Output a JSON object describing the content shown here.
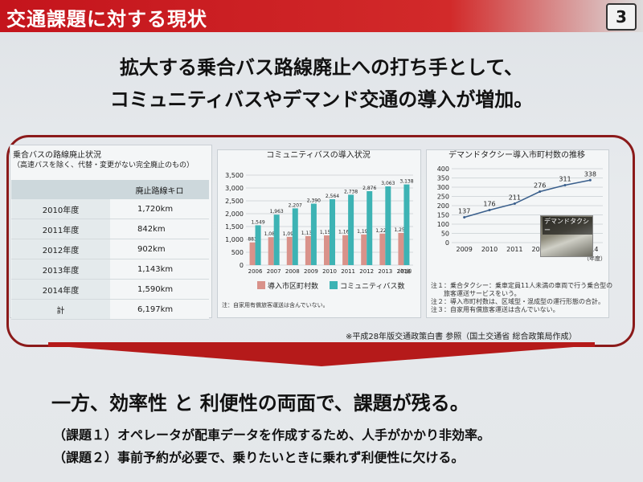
{
  "header": {
    "title": "交通課題に対する現状",
    "page_number": "3"
  },
  "headline": {
    "line1": "拡大する乗合バス路線廃止への打ち手として、",
    "line2": "コミュニティバスやデマンド交通の導入が増加。"
  },
  "route_table": {
    "title_line1": "乗合バスの路線廃止状況",
    "title_line2": "（高速バスを除く、代替・変更がない完全廃止のもの）",
    "column_header": "廃止路線キロ",
    "rows": [
      {
        "year": "2010年度",
        "value": "1,720km"
      },
      {
        "year": "2011年度",
        "value": "842km"
      },
      {
        "year": "2012年度",
        "value": "902km"
      },
      {
        "year": "2013年度",
        "value": "1,143km"
      },
      {
        "year": "2014年度",
        "value": "1,590km"
      },
      {
        "year": "計",
        "value": "6,197km"
      }
    ]
  },
  "chart_data": [
    {
      "type": "bar",
      "title": "コミュニティバスの導入状況",
      "categories": [
        "2006",
        "2007",
        "2008",
        "2009",
        "2010",
        "2011",
        "2012",
        "2013",
        "2014"
      ],
      "x_unit": "（年度）",
      "ylim": [
        0,
        3500
      ],
      "yticks": [
        "0",
        "500",
        "1,000",
        "1,500",
        "2,000",
        "2,500",
        "3,000",
        "3,500"
      ],
      "series": [
        {
          "name": "導入市区町村数",
          "color": "#d9928a",
          "values": [
            883,
            1087,
            1099,
            1130,
            1155,
            1165,
            1190,
            1226,
            1251
          ],
          "labels": [
            "883",
            "1,087",
            "1,099",
            "1,130",
            "1,155",
            "1,165",
            "1,190",
            "1,226",
            "1,251"
          ]
        },
        {
          "name": "コミュニティバス数",
          "color": "#3db3b4",
          "values": [
            1549,
            1963,
            2207,
            2390,
            2564,
            2738,
            2876,
            3063,
            3138
          ],
          "labels": [
            "1,549",
            "1,963",
            "2,207",
            "2,390",
            "2,564",
            "2,738",
            "2,876",
            "3,063",
            "3,138"
          ]
        }
      ],
      "note": "注：自家用有償旅客運送は含んでいない。"
    },
    {
      "type": "line",
      "title": "デマンドタクシー導入市町村数の推移",
      "x": [
        "2009",
        "2010",
        "2011",
        "2012",
        "2013",
        "2014"
      ],
      "x_unit": "（年度）",
      "y": [
        137,
        176,
        211,
        276,
        311,
        338
      ],
      "labels": [
        "137",
        "176",
        "211",
        "276",
        "311",
        "338"
      ],
      "ylim": [
        0,
        400
      ],
      "yticks": [
        "0",
        "50",
        "100",
        "150",
        "200",
        "250",
        "300",
        "350",
        "400"
      ],
      "color": "#3a5f8c",
      "photo_label": "デマンドタクシー",
      "notes": [
        "注１：乗合タクシー：乗車定員11人未満の車両で行う乗合型の",
        "　　旅客運送サービスをいう。",
        "注２：導入市町村数は、区域型・混成型の運行形態の合計。",
        "注３：自家用有償旅客運送は含んでいない。"
      ]
    }
  ],
  "source_note": "※平成28年版交通政策白書 参照（国土交通省 総合政策局作成）",
  "conclusion": "一方、効率性 と 利便性の両面で、課題が残る。",
  "issues": [
    "（課題１）オペレータが配車データを作成するため、人手がかかり非効率。",
    "（課題２）事前予約が必要で、乗りたいときに乗れず利便性に欠ける。"
  ],
  "colors": {
    "brand_red": "#c4141c",
    "frame_red": "#8b1a1a"
  }
}
